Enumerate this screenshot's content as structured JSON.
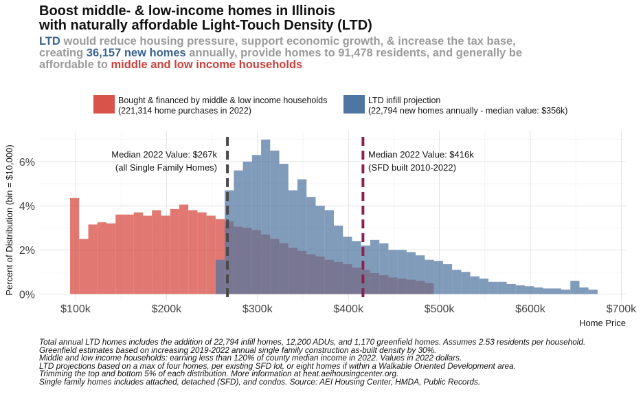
{
  "title": {
    "line1": "Boost middle- & low-income homes in Illinois",
    "line2": "with naturally affordable Light-Touch Density (LTD)"
  },
  "subtitle": {
    "ltd": "LTD",
    "part1": " would reduce housing pressure, support economic growth, & increase the tax base,",
    "part2": "creating ",
    "new_homes": "36,157 new homes",
    "part3": " annually, provide homes to 91,478 residents, and generally be",
    "part4": "affordable to ",
    "households": "middle and low income households"
  },
  "legend": {
    "red_line1": "Bought & financed by middle & low income households",
    "red_line2": "(221,314 home purchases in 2022)",
    "blue_line1": "LTD infill projection",
    "blue_line2": "(22,794 new homes annually - median value: $356k)"
  },
  "annotations": {
    "median1_line1": "Median 2022 Value: $267k",
    "median1_line2": "(all Single Family Homes)",
    "median2_line1": "Median 2022 Value: $416k",
    "median2_line2": "(SFD built 2010-2022)"
  },
  "footnotes": [
    "Total annual LTD homes includes the addition of 22,794 infill homes, 12,200 ADUs, and 1,170 greenfield homes. Assumes 2.53 residents per household.",
    "Greenfield estimates based on increasing 2019-2022 annual single family construction as-built density by 30%.",
    "Middle and low income households: earning less than 120% of county median income in 2022. Values in 2022 dollars.",
    "LTD projections based on a max of four homes, per existing SFD lot, or eight homes if within a Walkable Oriented Development area.",
    "Trimming the top and bottom 5% of each distribution. More information at heat.aeihousingcenter.org.",
    "Single family homes includes attached, detached (SFD), and condos. Source: AEI Housing Center, HMDA, Public Records."
  ],
  "colors": {
    "red": "#d9534a",
    "blue": "#4f76a0",
    "median1": "#4a4a4a",
    "median2": "#8b2150",
    "grid": "#e3e3e3"
  },
  "chart_data": {
    "type": "bar",
    "title": "",
    "xlabel": "Home Price",
    "ylabel": "Percent of Distribution (bin = $10,000)",
    "xlim": [
      60,
      705
    ],
    "ylim": [
      -0.3,
      7.4
    ],
    "x_ticks": [
      100,
      200,
      300,
      400,
      500,
      600,
      700
    ],
    "x_tick_labels": [
      "$100k",
      "$200k",
      "$300k",
      "$400k",
      "$500k",
      "$600k",
      "$700k"
    ],
    "y_ticks": [
      0,
      2,
      4,
      6
    ],
    "y_tick_labels": [
      "0%",
      "2%",
      "4%",
      "6%"
    ],
    "bin_width": 10,
    "grid": true,
    "legend_position": "top",
    "series": [
      {
        "name": "Bought & financed by middle & low income households",
        "x": [
          94,
          104,
          114,
          124,
          134,
          144,
          154,
          164,
          174,
          184,
          194,
          204,
          214,
          224,
          234,
          244,
          254,
          264,
          274,
          284,
          294,
          304,
          314,
          324,
          334,
          344,
          354,
          364,
          374,
          384,
          394,
          404,
          414,
          424,
          434,
          444,
          454,
          464,
          474,
          484
        ],
        "values": [
          4.35,
          2.5,
          3.15,
          3.25,
          3.2,
          3.6,
          3.6,
          3.7,
          3.55,
          3.8,
          3.55,
          3.85,
          4.05,
          3.8,
          3.7,
          3.55,
          3.4,
          3.3,
          3.05,
          3.0,
          2.9,
          2.7,
          2.5,
          2.3,
          2.1,
          1.95,
          1.8,
          1.7,
          1.55,
          1.45,
          1.35,
          1.2,
          1.1,
          0.95,
          0.85,
          0.75,
          0.7,
          0.65,
          0.6,
          0.5
        ]
      },
      {
        "name": "LTD infill projection",
        "x": [
          254,
          264,
          274,
          284,
          294,
          304,
          314,
          324,
          334,
          344,
          354,
          364,
          374,
          384,
          394,
          404,
          414,
          424,
          434,
          444,
          454,
          464,
          474,
          484,
          494,
          504,
          514,
          524,
          534,
          544,
          554,
          564,
          574,
          584,
          594,
          604,
          614,
          624,
          634,
          644,
          654,
          664
        ],
        "values": [
          1.55,
          4.7,
          5.6,
          6.0,
          6.3,
          7.0,
          6.5,
          5.9,
          4.7,
          5.2,
          4.4,
          4.0,
          3.8,
          3.1,
          2.6,
          2.4,
          2.2,
          2.45,
          2.3,
          2.0,
          2.0,
          1.9,
          1.75,
          1.55,
          1.5,
          1.35,
          1.1,
          1.0,
          0.8,
          0.7,
          0.55,
          0.55,
          0.45,
          0.4,
          0.35,
          0.3,
          0.25,
          0.25,
          0.2,
          0.6,
          0.3,
          0.2
        ]
      }
    ],
    "medians": [
      {
        "value": 267,
        "label": "Median 2022 Value: $267k"
      },
      {
        "value": 416,
        "label": "Median 2022 Value: $416k"
      }
    ]
  }
}
